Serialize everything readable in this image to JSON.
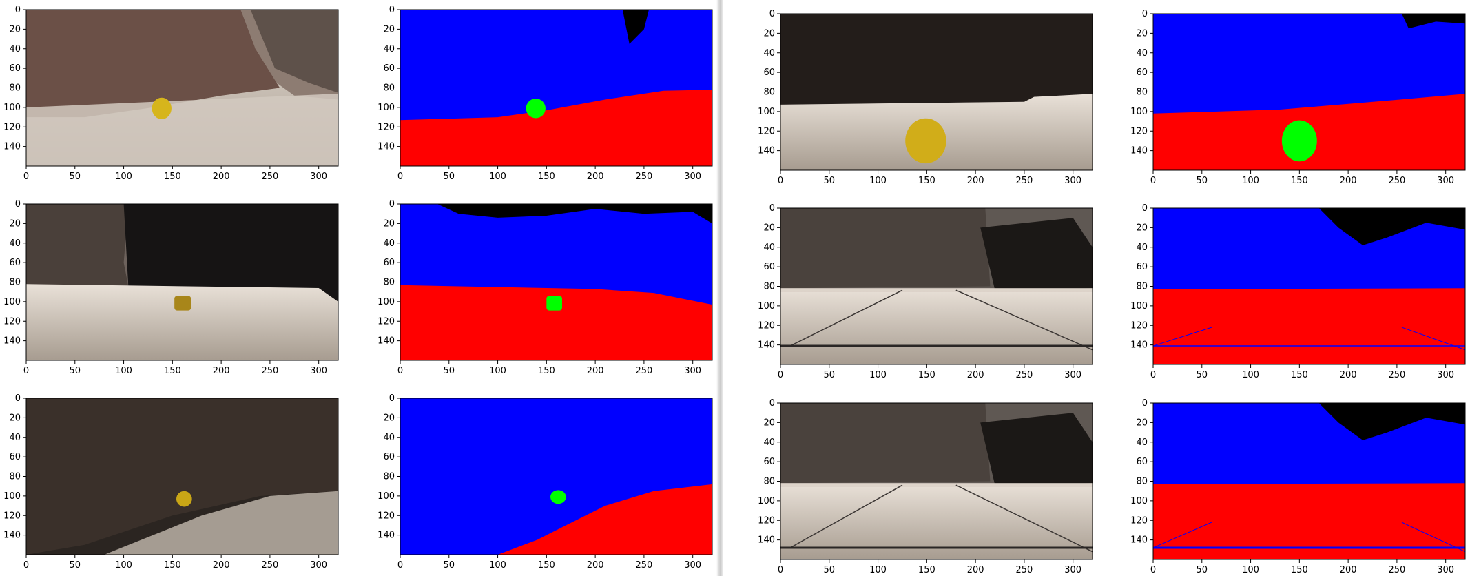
{
  "figures": [
    {
      "id": "r1-raw",
      "kind": "camera",
      "scene": "rock-left"
    },
    {
      "id": "r1-seg",
      "kind": "segmented",
      "scene": "rock-left"
    },
    {
      "id": "r1-raw2",
      "kind": "camera",
      "scene": "rock-close"
    },
    {
      "id": "r1-seg2",
      "kind": "segmented",
      "scene": "rock-close"
    },
    {
      "id": "r2-raw",
      "kind": "camera",
      "scene": "rock-center"
    },
    {
      "id": "r2-seg",
      "kind": "segmented",
      "scene": "rock-center"
    },
    {
      "id": "r2-raw2",
      "kind": "camera",
      "scene": "grid-a"
    },
    {
      "id": "r2-seg2",
      "kind": "segmented",
      "scene": "grid-a"
    },
    {
      "id": "r3-raw",
      "kind": "camera",
      "scene": "rock-dark"
    },
    {
      "id": "r3-seg",
      "kind": "segmented",
      "scene": "rock-dark"
    },
    {
      "id": "r3-raw2",
      "kind": "camera",
      "scene": "grid-b"
    },
    {
      "id": "r3-seg2",
      "kind": "segmented",
      "scene": "grid-b"
    }
  ],
  "axes": {
    "x_ticks": [
      0,
      50,
      100,
      150,
      200,
      250,
      300
    ],
    "y_ticks": [
      0,
      20,
      40,
      60,
      80,
      100,
      120,
      140
    ],
    "x_range": [
      0,
      320
    ],
    "y_range": [
      0,
      160
    ]
  },
  "colors": {
    "sky": "#0000ff",
    "ground": "#ff0000",
    "rock": "#00ff00",
    "obstacle": "#000000",
    "sample_rock": "#d2b21a"
  }
}
